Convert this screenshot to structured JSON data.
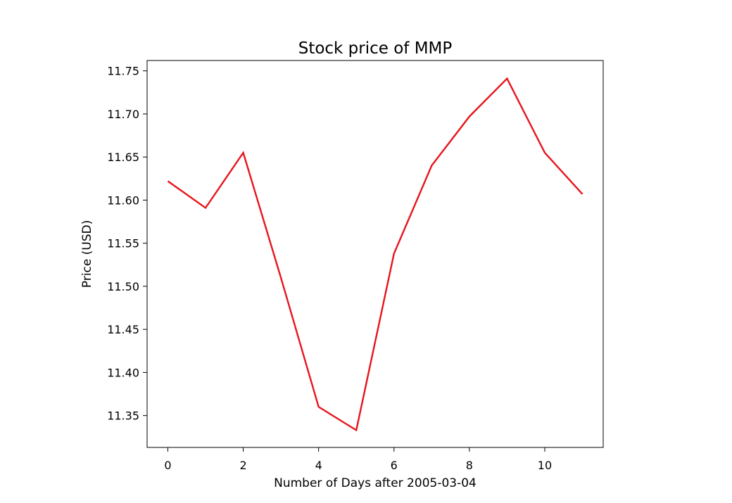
{
  "chart_data": {
    "type": "line",
    "title": "Stock price of MMP",
    "xlabel": "Number of Days after 2005-03-04",
    "ylabel": "Price (USD)",
    "xlim": [
      -0.55,
      11.55
    ],
    "ylim": [
      11.313,
      11.762
    ],
    "xticks": [
      0,
      2,
      4,
      6,
      8,
      10
    ],
    "xtick_labels": [
      "0",
      "2",
      "4",
      "6",
      "8",
      "10"
    ],
    "yticks": [
      11.35,
      11.4,
      11.45,
      11.5,
      11.55,
      11.6,
      11.65,
      11.7,
      11.75
    ],
    "ytick_labels": [
      "11.35",
      "11.40",
      "11.45",
      "11.50",
      "11.55",
      "11.60",
      "11.65",
      "11.70",
      "11.75"
    ],
    "grid": false,
    "series": [
      {
        "color": "#e8141c",
        "x": [
          0,
          1,
          2,
          3,
          4,
          5,
          6,
          7,
          8,
          9,
          10,
          11
        ],
        "values": [
          11.622,
          11.591,
          11.655,
          11.51,
          11.36,
          11.333,
          11.538,
          11.64,
          11.697,
          11.741,
          11.655,
          11.607
        ]
      }
    ]
  }
}
